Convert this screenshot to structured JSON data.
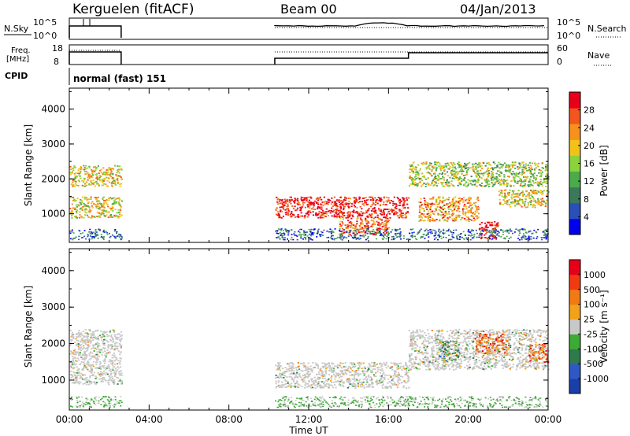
{
  "header": {
    "station": "Kerguelen (fitACF)",
    "beam": "Beam 00",
    "date": "04/Jan/2013"
  },
  "top_panels": {
    "nsky_label": "N.Sky",
    "nsky_ticks": [
      "10^5",
      "10^0"
    ],
    "nsearch_label": "N.Search",
    "nsearch_ticks": [
      "10^5",
      "10^0"
    ],
    "freq_label_1": "Freq.",
    "freq_label_2": "[MHz]",
    "freq_ticks": [
      "18",
      "8"
    ],
    "nave_label": "Nave",
    "nave_ticks": [
      "60",
      "0"
    ],
    "cpid_label": "CPID",
    "cpid_value": "normal (fast) 151"
  },
  "colors": {
    "power": [
      "#0000ee",
      "#2a4fb8",
      "#3a7a5a",
      "#4bab4b",
      "#8bd23c",
      "#f2c21a",
      "#f7911e",
      "#f2561e",
      "#e8001a"
    ],
    "velocity": [
      "#1a3fa8",
      "#2e58c6",
      "#2e7a4e",
      "#3daa35",
      "#c8c8c8",
      "#f0a21a",
      "#f07a14",
      "#f03b12",
      "#e8001a"
    ],
    "grey_scatter": "#c8c8c8"
  },
  "chart_data": [
    {
      "type": "heatmap",
      "title": "Power",
      "ylabel": "Slant Range [km]",
      "xlabel": "Time UT",
      "x_ticks": [
        "00:00",
        "04:00",
        "08:00",
        "12:00",
        "16:00",
        "20:00",
        "00:00"
      ],
      "x_range_hours": [
        0,
        24
      ],
      "y_ticks": [
        1000,
        2000,
        3000,
        4000
      ],
      "ylim": [
        180,
        4600
      ],
      "colorbar_label": "Power [dB]",
      "colorbar_ticks": [
        "28",
        "24",
        "20",
        "16",
        "12",
        "8",
        "4"
      ],
      "echo_regions": [
        {
          "t": [
            0.0,
            2.6
          ],
          "r": [
            1800,
            2400
          ],
          "level": 5
        },
        {
          "t": [
            0.0,
            2.6
          ],
          "r": [
            900,
            1500
          ],
          "level": 5
        },
        {
          "t": [
            10.3,
            17.0
          ],
          "r": [
            900,
            1500
          ],
          "level": 8
        },
        {
          "t": [
            13.5,
            16.0
          ],
          "r": [
            400,
            900
          ],
          "level": 7
        },
        {
          "t": [
            17.0,
            24.0
          ],
          "r": [
            1800,
            2500
          ],
          "level": 4
        },
        {
          "t": [
            17.5,
            20.5
          ],
          "r": [
            800,
            1500
          ],
          "level": 6
        },
        {
          "t": [
            20.5,
            21.5
          ],
          "r": [
            300,
            800
          ],
          "level": 8
        },
        {
          "t": [
            21.5,
            24.0
          ],
          "r": [
            1200,
            1700
          ],
          "level": 5
        }
      ]
    },
    {
      "type": "heatmap",
      "title": "Velocity",
      "ylabel": "Slant Range [km]",
      "xlabel": "Time UT",
      "x_ticks": [
        "00:00",
        "04:00",
        "08:00",
        "12:00",
        "16:00",
        "20:00",
        "00:00"
      ],
      "x_range_hours": [
        0,
        24
      ],
      "y_ticks": [
        1000,
        2000,
        3000,
        4000
      ],
      "ylim": [
        180,
        4600
      ],
      "colorbar_label": "Velocity [m s⁻¹]",
      "colorbar_ticks": [
        "1000",
        "500",
        "100",
        "25",
        "-25",
        "-100",
        "-500",
        "-1000"
      ],
      "echo_regions": [
        {
          "t": [
            0.0,
            2.6
          ],
          "r": [
            900,
            2400
          ],
          "level": 4
        },
        {
          "t": [
            10.3,
            17.0
          ],
          "r": [
            800,
            1500
          ],
          "level": 4
        },
        {
          "t": [
            17.0,
            24.0
          ],
          "r": [
            1300,
            2400
          ],
          "level": 4
        },
        {
          "t": [
            18.5,
            19.5
          ],
          "r": [
            1500,
            2100
          ],
          "level": 3
        },
        {
          "t": [
            20.3,
            22.0
          ],
          "r": [
            1700,
            2300
          ],
          "level": 6
        },
        {
          "t": [
            23.0,
            24.0
          ],
          "r": [
            1500,
            2000
          ],
          "level": 6
        }
      ]
    }
  ]
}
